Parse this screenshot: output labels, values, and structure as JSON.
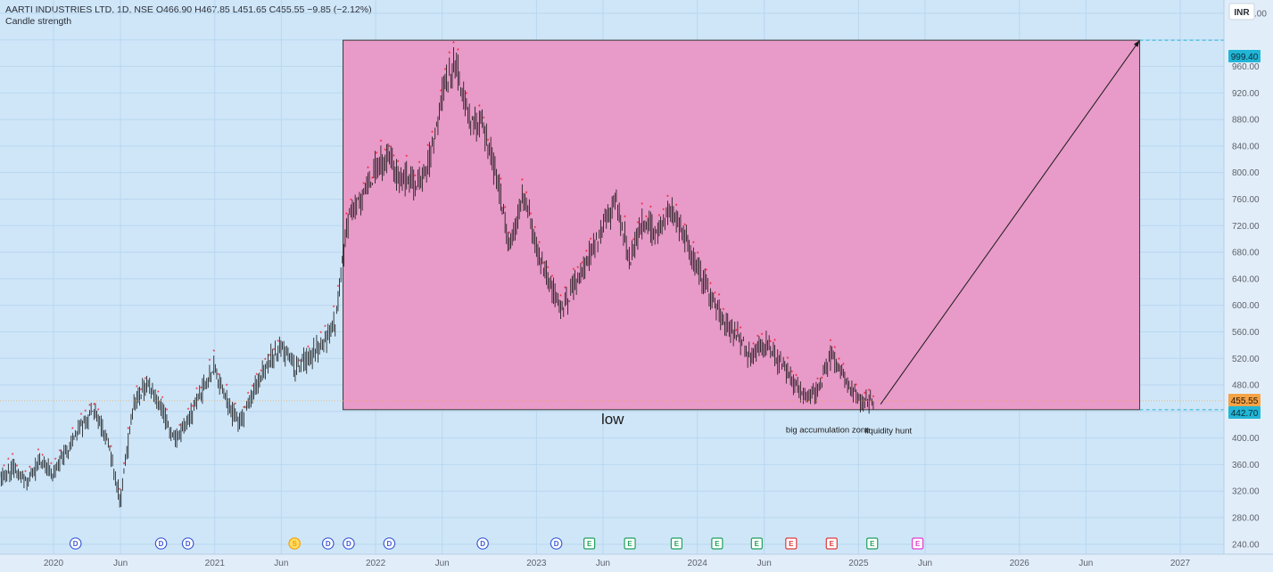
{
  "header": {
    "symbol": "AARTI INDUSTRIES LTD",
    "interval": "1D",
    "exchange": "NSE",
    "open": "O466.90",
    "high": "H467.85",
    "low": "L451.65",
    "close": "C455.55",
    "change": "−9.85 (−2.12%)"
  },
  "indicator": "Candle strength",
  "currency": "INR",
  "price_labels": {
    "top": "999.40",
    "current": "455.55",
    "bottom": "442.70"
  },
  "annotations": {
    "low": "low",
    "accumulation": "big accumulation zone",
    "liquidity": "liquidity hunt"
  },
  "colors": {
    "background": "#cfe6f8",
    "zone_fill": "#e89ac8",
    "line_cyan": "#22b5d6",
    "current_price": "#f4a347",
    "dots": "#f5000c",
    "candles": "#111111"
  },
  "chart_data": {
    "type": "line",
    "title": "AARTI INDUSTRIES LTD, 1D, NSE",
    "ylabel": "INR",
    "ylim": [
      225,
      1060
    ],
    "y_ticks": [
      240,
      280,
      320,
      360,
      400,
      440,
      480,
      520,
      560,
      600,
      640,
      680,
      720,
      760,
      800,
      840,
      880,
      920,
      960,
      1000,
      1040
    ],
    "y_tick_labels": [
      "240.00",
      "280.00",
      "320.00",
      "360.00",
      "400.00",
      "440.00",
      "480.00",
      "520.00",
      "560.00",
      "600.00",
      "640.00",
      "680.00",
      "720.00",
      "760.00",
      "800.00",
      "840.00",
      "880.00",
      "920.00",
      "960.00",
      "1,000.00",
      "1,040.00"
    ],
    "x_ticks": [
      {
        "date": "2020-01-01",
        "label": "2020"
      },
      {
        "date": "2020-06-01",
        "label": "Jun"
      },
      {
        "date": "2021-01-01",
        "label": "2021"
      },
      {
        "date": "2021-06-01",
        "label": "Jun"
      },
      {
        "date": "2022-01-01",
        "label": "2022"
      },
      {
        "date": "2022-06-01",
        "label": "Jun"
      },
      {
        "date": "2023-01-01",
        "label": "2023"
      },
      {
        "date": "2023-06-01",
        "label": "Jun"
      },
      {
        "date": "2024-01-01",
        "label": "2024"
      },
      {
        "date": "2024-06-01",
        "label": "Jun"
      },
      {
        "date": "2025-01-01",
        "label": "2025"
      },
      {
        "date": "2025-06-01",
        "label": "Jun"
      },
      {
        "date": "2026-01-01",
        "label": "2026"
      },
      {
        "date": "2026-06-01",
        "label": "Jun"
      },
      {
        "date": "2027-01-01",
        "label": "2027"
      }
    ],
    "series": [
      {
        "type": "candlestick-close-approx",
        "points": [
          [
            "2019-09-01",
            340
          ],
          [
            "2019-10-01",
            355
          ],
          [
            "2019-11-01",
            332
          ],
          [
            "2019-12-01",
            362
          ],
          [
            "2020-01-01",
            348
          ],
          [
            "2020-02-01",
            380
          ],
          [
            "2020-03-01",
            418
          ],
          [
            "2020-04-01",
            442
          ],
          [
            "2020-05-01",
            400
          ],
          [
            "2020-06-01",
            305
          ],
          [
            "2020-07-01",
            450
          ],
          [
            "2020-08-01",
            485
          ],
          [
            "2020-09-01",
            445
          ],
          [
            "2020-10-01",
            395
          ],
          [
            "2020-11-01",
            428
          ],
          [
            "2020-12-01",
            468
          ],
          [
            "2021-01-01",
            505
          ],
          [
            "2021-02-01",
            445
          ],
          [
            "2021-03-01",
            425
          ],
          [
            "2021-04-01",
            472
          ],
          [
            "2021-05-01",
            515
          ],
          [
            "2021-06-01",
            540
          ],
          [
            "2021-07-01",
            505
          ],
          [
            "2021-08-01",
            520
          ],
          [
            "2021-09-01",
            540
          ],
          [
            "2021-10-01",
            572
          ],
          [
            "2021-11-01",
            735
          ],
          [
            "2021-12-01",
            762
          ],
          [
            "2022-01-01",
            805
          ],
          [
            "2022-02-01",
            820
          ],
          [
            "2022-03-01",
            790
          ],
          [
            "2022-04-01",
            785
          ],
          [
            "2022-05-01",
            810
          ],
          [
            "2022-06-01",
            918
          ],
          [
            "2022-07-01",
            968
          ],
          [
            "2022-08-01",
            875
          ],
          [
            "2022-09-01",
            865
          ],
          [
            "2022-10-01",
            800
          ],
          [
            "2022-11-01",
            690
          ],
          [
            "2022-12-01",
            772
          ],
          [
            "2023-01-01",
            685
          ],
          [
            "2023-02-01",
            625
          ],
          [
            "2023-03-01",
            595
          ],
          [
            "2023-04-01",
            635
          ],
          [
            "2023-05-01",
            672
          ],
          [
            "2023-06-01",
            720
          ],
          [
            "2023-07-01",
            760
          ],
          [
            "2023-08-01",
            668
          ],
          [
            "2023-09-01",
            728
          ],
          [
            "2023-10-01",
            702
          ],
          [
            "2023-11-01",
            745
          ],
          [
            "2023-12-01",
            705
          ],
          [
            "2024-01-01",
            658
          ],
          [
            "2024-02-01",
            615
          ],
          [
            "2024-03-01",
            575
          ],
          [
            "2024-04-01",
            555
          ],
          [
            "2024-05-01",
            520
          ],
          [
            "2024-06-01",
            545
          ],
          [
            "2024-07-01",
            515
          ],
          [
            "2024-08-01",
            492
          ],
          [
            "2024-09-01",
            462
          ],
          [
            "2024-10-01",
            470
          ],
          [
            "2024-11-01",
            522
          ],
          [
            "2024-12-01",
            488
          ],
          [
            "2025-01-01",
            456
          ]
        ]
      }
    ],
    "zone": {
      "top": 999.4,
      "bottom": 442.7,
      "start": "2021-10-19",
      "end": "2026-10-01"
    },
    "projection": {
      "from_date": "2025-02-20",
      "from_price": 451,
      "to_date": "2026-10-01",
      "to_price": 999.4
    },
    "events": [
      {
        "date": "2020-02-20",
        "letter": "D"
      },
      {
        "date": "2020-09-01",
        "letter": "D"
      },
      {
        "date": "2020-11-01",
        "letter": "D"
      },
      {
        "date": "2021-07-01",
        "letter": "S"
      },
      {
        "date": "2021-09-15",
        "letter": "D"
      },
      {
        "date": "2021-11-01",
        "letter": "D"
      },
      {
        "date": "2022-02-01",
        "letter": "D"
      },
      {
        "date": "2022-09-01",
        "letter": "D"
      },
      {
        "date": "2023-02-15",
        "letter": "D"
      },
      {
        "date": "2023-05-01",
        "letter": "E"
      },
      {
        "date": "2023-08-01",
        "letter": "E"
      },
      {
        "date": "2023-11-15",
        "letter": "E"
      },
      {
        "date": "2024-02-15",
        "letter": "E"
      },
      {
        "date": "2024-05-15",
        "letter": "E"
      },
      {
        "date": "2024-08-01",
        "letter": "E"
      },
      {
        "date": "2024-11-01",
        "letter": "E"
      },
      {
        "date": "2025-02-01",
        "letter": "E"
      },
      {
        "date": "2025-05-15",
        "letter": "E"
      }
    ]
  }
}
